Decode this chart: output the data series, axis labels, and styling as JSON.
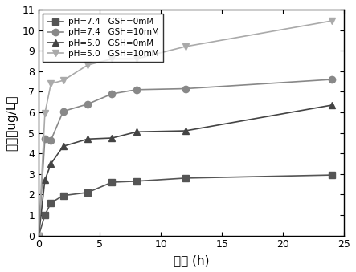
{
  "series": [
    {
      "label": "pH=7.4   GSH=0mM",
      "marker": "s",
      "color": "#555555",
      "x": [
        0,
        0.5,
        1,
        2,
        4,
        6,
        8,
        12,
        24
      ],
      "y": [
        0,
        1.0,
        1.6,
        1.95,
        2.1,
        2.6,
        2.65,
        2.8,
        2.95
      ]
    },
    {
      "label": "pH=7.4   GSH=10mM",
      "marker": "o",
      "color": "#888888",
      "x": [
        0,
        0.5,
        1,
        2,
        4,
        6,
        8,
        12,
        24
      ],
      "y": [
        0,
        4.7,
        4.65,
        6.05,
        6.4,
        6.9,
        7.1,
        7.15,
        7.6
      ]
    },
    {
      "label": "pH=5.0   GSH=0mM",
      "marker": "^",
      "color": "#444444",
      "x": [
        0,
        0.5,
        1,
        2,
        4,
        6,
        8,
        12,
        24
      ],
      "y": [
        0,
        2.7,
        3.5,
        4.35,
        4.7,
        4.75,
        5.05,
        5.1,
        6.35
      ]
    },
    {
      "label": "pH=5.0   GSH=10mM",
      "marker": "v",
      "color": "#aaaaaa",
      "x": [
        0,
        0.5,
        1,
        2,
        4,
        6,
        8,
        12,
        24
      ],
      "y": [
        0,
        5.95,
        7.4,
        7.55,
        8.3,
        8.6,
        8.6,
        9.2,
        10.45
      ]
    }
  ],
  "xlabel": "时间 (h)",
  "ylabel": "浓度（ug/L）",
  "xlim": [
    0,
    25
  ],
  "ylim": [
    0,
    11
  ],
  "xticks": [
    0,
    5,
    10,
    15,
    20,
    25
  ],
  "yticks": [
    0,
    1,
    2,
    3,
    4,
    5,
    6,
    7,
    8,
    9,
    10,
    11
  ],
  "legend_loc": "upper left",
  "bg_color": "#f0f0f0",
  "line_color": "#999999",
  "markersize": 6,
  "linewidth": 1.2
}
